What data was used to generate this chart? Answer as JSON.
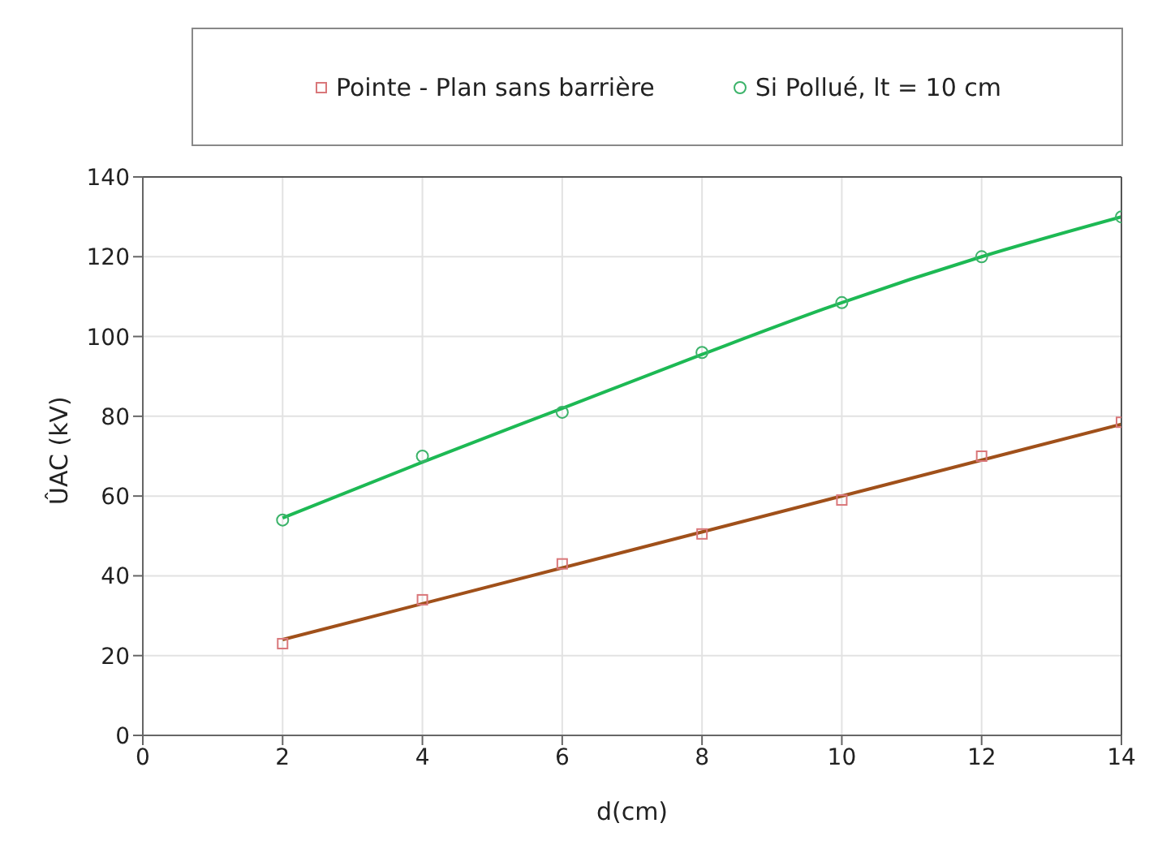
{
  "chart_data": {
    "type": "scatter",
    "xlabel": "d(cm)",
    "ylabel": "ÛAC (kV)",
    "xlim": [
      0,
      14
    ],
    "xticks": [
      0,
      2,
      4,
      6,
      8,
      10,
      12,
      14
    ],
    "ylim": [
      0,
      140
    ],
    "yticks": [
      0,
      20,
      40,
      60,
      80,
      100,
      120,
      140
    ],
    "grid": true,
    "legend": "top",
    "x": [
      2,
      4,
      6,
      8,
      10,
      12,
      14
    ],
    "series": [
      {
        "name": "Pointe - Plan sans barrière",
        "marker": "square",
        "color": "#d9777a",
        "values": [
          23,
          34,
          43,
          50.5,
          59,
          70,
          78.5
        ]
      },
      {
        "name": "Si Pollué, lt = 10 cm",
        "marker": "circle",
        "color": "#3cb36a",
        "values": [
          54,
          70,
          81,
          96,
          108.5,
          120,
          130
        ]
      },
      {
        "type": "line",
        "marker": "none",
        "line_style": "solid",
        "color": "#a0501a",
        "x": [
          2,
          14
        ],
        "values": [
          24,
          78
        ]
      },
      {
        "type": "line",
        "marker": "none",
        "line_style": "solid",
        "color": "#1db954",
        "x": [
          2,
          4,
          6,
          8,
          10,
          12,
          14
        ],
        "values": [
          54.5,
          68.5,
          82,
          95.5,
          108.5,
          120,
          130
        ]
      }
    ]
  }
}
